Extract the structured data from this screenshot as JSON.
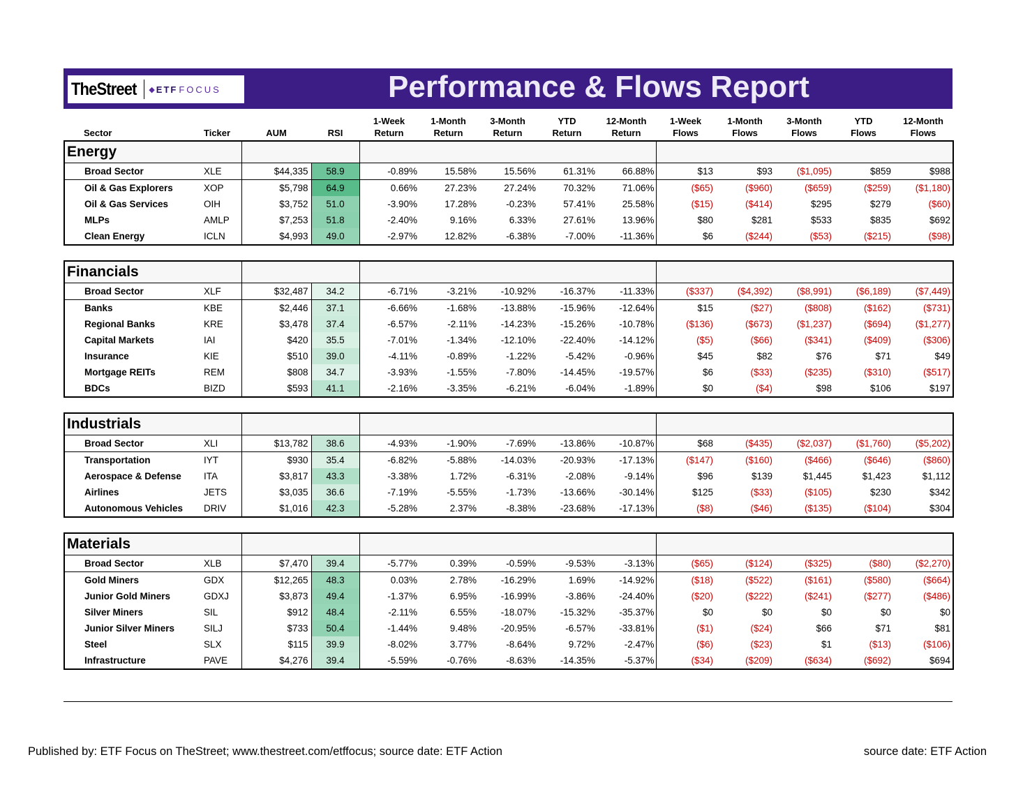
{
  "logo": {
    "street": "TheStreet",
    "etf": "ETF",
    "focus": "FOCUS"
  },
  "title": "Performance & Flows Report",
  "columns": {
    "sector": "Sector",
    "ticker": "Ticker",
    "aum": "AUM",
    "rsi": "RSI",
    "ret_1w": [
      "1-Week",
      "Return"
    ],
    "ret_1m": [
      "1-Month",
      "Return"
    ],
    "ret_3m": [
      "3-Month",
      "Return"
    ],
    "ret_ytd": [
      "YTD",
      "Return"
    ],
    "ret_12m": [
      "12-Month",
      "Return"
    ],
    "flow_1w": [
      "1-Week",
      "Flows"
    ],
    "flow_1m": [
      "1-Month",
      "Flows"
    ],
    "flow_3m": [
      "3-Month",
      "Flows"
    ],
    "flow_ytd": [
      "YTD",
      "Flows"
    ],
    "flow_12m": [
      "12-Month",
      "Flows"
    ]
  },
  "colors": {
    "banner": "#3b1d85",
    "negative": "#cc0000",
    "rsi_high": "#57bb8a",
    "rsi_low": "#ffffff"
  },
  "sections": [
    {
      "name": "Energy",
      "rows": [
        {
          "sector": "Broad Sector",
          "ticker": "XLE",
          "aum": "$44,335",
          "rsi": "58.9",
          "returns": [
            "-0.89%",
            "15.58%",
            "15.56%",
            "61.31%",
            "66.88%"
          ],
          "flows": [
            "$13",
            "$93",
            "($1,095)",
            "$859",
            "$988"
          ]
        },
        {
          "sector": "Oil & Gas Explorers",
          "ticker": "XOP",
          "aum": "$5,798",
          "rsi": "64.9",
          "returns": [
            "0.66%",
            "27.23%",
            "27.24%",
            "70.32%",
            "71.06%"
          ],
          "flows": [
            "($65)",
            "($960)",
            "($659)",
            "($259)",
            "($1,180)"
          ]
        },
        {
          "sector": "Oil & Gas Services",
          "ticker": "OIH",
          "aum": "$3,752",
          "rsi": "51.0",
          "returns": [
            "-3.90%",
            "17.28%",
            "-0.23%",
            "57.41%",
            "25.58%"
          ],
          "flows": [
            "($15)",
            "($414)",
            "$295",
            "$279",
            "($60)"
          ]
        },
        {
          "sector": "MLPs",
          "ticker": "AMLP",
          "aum": "$7,253",
          "rsi": "51.8",
          "returns": [
            "-2.40%",
            "9.16%",
            "6.33%",
            "27.61%",
            "13.96%"
          ],
          "flows": [
            "$80",
            "$281",
            "$533",
            "$835",
            "$692"
          ]
        },
        {
          "sector": "Clean Energy",
          "ticker": "ICLN",
          "aum": "$4,993",
          "rsi": "49.0",
          "returns": [
            "-2.97%",
            "12.82%",
            "-6.38%",
            "-7.00%",
            "-11.36%"
          ],
          "flows": [
            "$6",
            "($244)",
            "($53)",
            "($215)",
            "($98)"
          ]
        }
      ]
    },
    {
      "name": "Financials",
      "rows": [
        {
          "sector": "Broad Sector",
          "ticker": "XLF",
          "aum": "$32,487",
          "rsi": "34.2",
          "returns": [
            "-6.71%",
            "-3.21%",
            "-10.92%",
            "-16.37%",
            "-11.33%"
          ],
          "flows": [
            "($337)",
            "($4,392)",
            "($8,991)",
            "($6,189)",
            "($7,449)"
          ]
        },
        {
          "sector": "Banks",
          "ticker": "KBE",
          "aum": "$2,446",
          "rsi": "37.1",
          "returns": [
            "-6.66%",
            "-1.68%",
            "-13.88%",
            "-15.96%",
            "-12.64%"
          ],
          "flows": [
            "$15",
            "($27)",
            "($808)",
            "($162)",
            "($731)"
          ]
        },
        {
          "sector": "Regional Banks",
          "ticker": "KRE",
          "aum": "$3,478",
          "rsi": "37.4",
          "returns": [
            "-6.57%",
            "-2.11%",
            "-14.23%",
            "-15.26%",
            "-10.78%"
          ],
          "flows": [
            "($136)",
            "($673)",
            "($1,237)",
            "($694)",
            "($1,277)"
          ]
        },
        {
          "sector": "Capital Markets",
          "ticker": "IAI",
          "aum": "$420",
          "rsi": "35.5",
          "returns": [
            "-7.01%",
            "-1.34%",
            "-12.10%",
            "-22.40%",
            "-14.12%"
          ],
          "flows": [
            "($5)",
            "($66)",
            "($341)",
            "($409)",
            "($306)"
          ]
        },
        {
          "sector": "Insurance",
          "ticker": "KIE",
          "aum": "$510",
          "rsi": "39.0",
          "returns": [
            "-4.11%",
            "-0.89%",
            "-1.22%",
            "-5.42%",
            "-0.96%"
          ],
          "flows": [
            "$45",
            "$82",
            "$76",
            "$71",
            "$49"
          ]
        },
        {
          "sector": "Mortgage REITs",
          "ticker": "REM",
          "aum": "$808",
          "rsi": "34.7",
          "returns": [
            "-3.93%",
            "-1.55%",
            "-7.80%",
            "-14.45%",
            "-19.57%"
          ],
          "flows": [
            "$6",
            "($33)",
            "($235)",
            "($310)",
            "($517)"
          ]
        },
        {
          "sector": "BDCs",
          "ticker": "BIZD",
          "aum": "$593",
          "rsi": "41.1",
          "returns": [
            "-2.16%",
            "-3.35%",
            "-6.21%",
            "-6.04%",
            "-1.89%"
          ],
          "flows": [
            "$0",
            "($4)",
            "$98",
            "$106",
            "$197"
          ]
        }
      ]
    },
    {
      "name": "Industrials",
      "rows": [
        {
          "sector": "Broad Sector",
          "ticker": "XLI",
          "aum": "$13,782",
          "rsi": "38.6",
          "returns": [
            "-4.93%",
            "-1.90%",
            "-7.69%",
            "-13.86%",
            "-10.87%"
          ],
          "flows": [
            "$68",
            "($435)",
            "($2,037)",
            "($1,760)",
            "($5,202)"
          ]
        },
        {
          "sector": "Transportation",
          "ticker": "IYT",
          "aum": "$930",
          "rsi": "35.4",
          "returns": [
            "-6.82%",
            "-5.88%",
            "-14.03%",
            "-20.93%",
            "-17.13%"
          ],
          "flows": [
            "($147)",
            "($160)",
            "($466)",
            "($646)",
            "($860)"
          ]
        },
        {
          "sector": "Aerospace & Defense",
          "ticker": "ITA",
          "aum": "$3,817",
          "rsi": "43.3",
          "returns": [
            "-3.38%",
            "1.72%",
            "-6.31%",
            "-2.08%",
            "-9.14%"
          ],
          "flows": [
            "$96",
            "$139",
            "$1,445",
            "$1,423",
            "$1,112"
          ]
        },
        {
          "sector": "Airlines",
          "ticker": "JETS",
          "aum": "$3,035",
          "rsi": "36.6",
          "returns": [
            "-7.19%",
            "-5.55%",
            "-1.73%",
            "-13.66%",
            "-30.14%"
          ],
          "flows": [
            "$125",
            "($33)",
            "($105)",
            "$230",
            "$342"
          ]
        },
        {
          "sector": "Autonomous Vehicles",
          "ticker": "DRIV",
          "aum": "$1,016",
          "rsi": "42.3",
          "returns": [
            "-5.28%",
            "2.37%",
            "-8.38%",
            "-23.68%",
            "-17.13%"
          ],
          "flows": [
            "($8)",
            "($46)",
            "($135)",
            "($104)",
            "$304"
          ]
        }
      ]
    },
    {
      "name": "Materials",
      "rows": [
        {
          "sector": "Broad Sector",
          "ticker": "XLB",
          "aum": "$7,470",
          "rsi": "39.4",
          "returns": [
            "-5.77%",
            "0.39%",
            "-0.59%",
            "-9.53%",
            "-3.13%"
          ],
          "flows": [
            "($65)",
            "($124)",
            "($325)",
            "($80)",
            "($2,270)"
          ]
        },
        {
          "sector": "Gold Miners",
          "ticker": "GDX",
          "aum": "$12,265",
          "rsi": "48.3",
          "returns": [
            "0.03%",
            "2.78%",
            "-16.29%",
            "1.69%",
            "-14.92%"
          ],
          "flows": [
            "($18)",
            "($522)",
            "($161)",
            "($580)",
            "($664)"
          ]
        },
        {
          "sector": "Junior Gold Miners",
          "ticker": "GDXJ",
          "aum": "$3,873",
          "rsi": "49.4",
          "returns": [
            "-1.37%",
            "6.95%",
            "-16.99%",
            "-3.86%",
            "-24.40%"
          ],
          "flows": [
            "($20)",
            "($222)",
            "($241)",
            "($277)",
            "($486)"
          ]
        },
        {
          "sector": "Silver Miners",
          "ticker": "SIL",
          "aum": "$912",
          "rsi": "48.4",
          "returns": [
            "-2.11%",
            "6.55%",
            "-18.07%",
            "-15.32%",
            "-35.37%"
          ],
          "flows": [
            "$0",
            "$0",
            "$0",
            "$0",
            "$0"
          ]
        },
        {
          "sector": "Junior Silver Miners",
          "ticker": "SILJ",
          "aum": "$733",
          "rsi": "50.4",
          "returns": [
            "-1.44%",
            "9.48%",
            "-20.95%",
            "-6.57%",
            "-33.81%"
          ],
          "flows": [
            "($1)",
            "($24)",
            "$66",
            "$71",
            "$81"
          ]
        },
        {
          "sector": "Steel",
          "ticker": "SLX",
          "aum": "$115",
          "rsi": "39.9",
          "returns": [
            "-8.02%",
            "3.77%",
            "-8.64%",
            "9.72%",
            "-2.47%"
          ],
          "flows": [
            "($6)",
            "($23)",
            "$1",
            "($13)",
            "($106)"
          ]
        },
        {
          "sector": "Infrastructure",
          "ticker": "PAVE",
          "aum": "$4,276",
          "rsi": "39.4",
          "returns": [
            "-5.59%",
            "-0.76%",
            "-8.63%",
            "-14.35%",
            "-5.37%"
          ],
          "flows": [
            "($34)",
            "($209)",
            "($634)",
            "($692)",
            "$694"
          ]
        }
      ]
    }
  ],
  "footer": {
    "left": "Published by: ETF Focus on TheStreet; www.thestreet.com/etffocus; source date: ETF Action",
    "right": "source date: ETF Action"
  }
}
